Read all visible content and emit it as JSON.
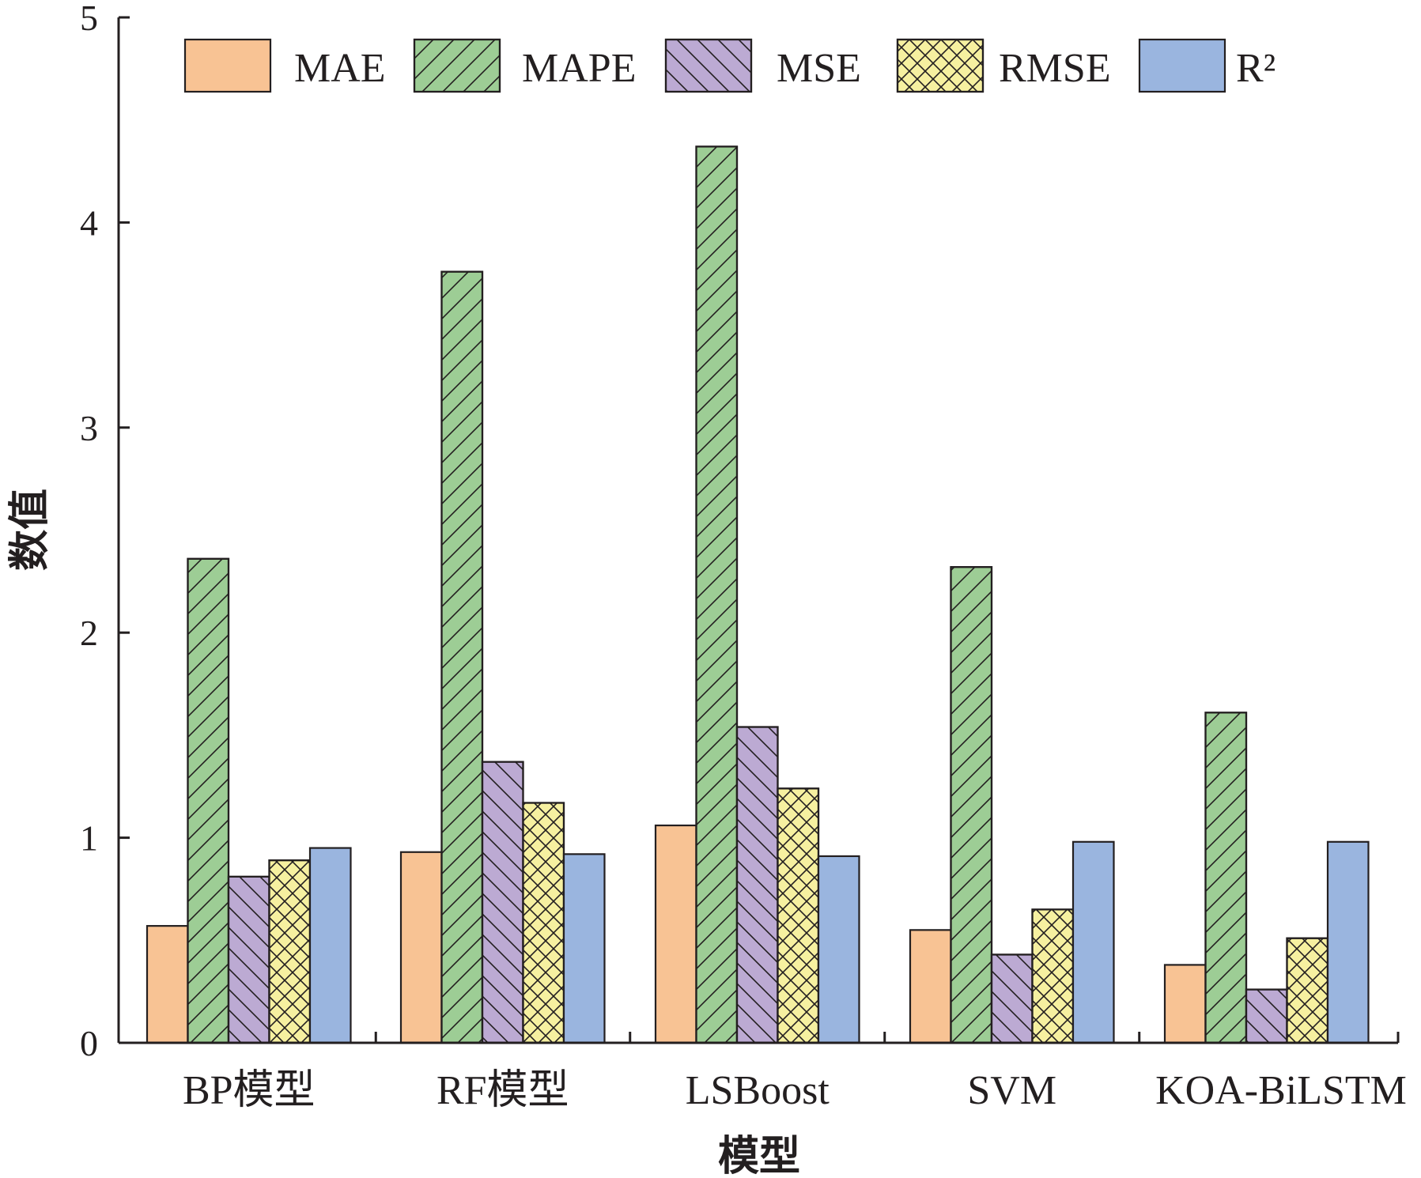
{
  "chart_data": {
    "type": "bar",
    "categories": [
      "BP模型",
      "RF模型",
      "LSBoost",
      "SVM",
      "KOA-BiLSTM"
    ],
    "series": [
      {
        "name": "MAE",
        "values": [
          0.57,
          0.93,
          1.06,
          0.55,
          0.38
        ],
        "color": "#f8c394",
        "pattern": "none"
      },
      {
        "name": "MAPE",
        "values": [
          2.36,
          3.76,
          4.37,
          2.32,
          1.61
        ],
        "color": "#9dcd95",
        "pattern": "diag-up"
      },
      {
        "name": "MSE",
        "values": [
          0.81,
          1.37,
          1.54,
          0.43,
          0.26
        ],
        "color": "#bcaad3",
        "pattern": "diag-down"
      },
      {
        "name": "RMSE",
        "values": [
          0.89,
          1.17,
          1.24,
          0.65,
          0.51
        ],
        "color": "#f6f0a0",
        "pattern": "cross"
      },
      {
        "name": "R²",
        "values": [
          0.95,
          0.92,
          0.91,
          0.98,
          0.98
        ],
        "color": "#9ab5df",
        "pattern": "none"
      }
    ],
    "xlabel": "模型",
    "ylabel": "数值",
    "ylim": [
      0,
      5
    ],
    "yticks": [
      0,
      1,
      2,
      3,
      4,
      5
    ],
    "grid": false,
    "legend": "top, horizontal"
  }
}
